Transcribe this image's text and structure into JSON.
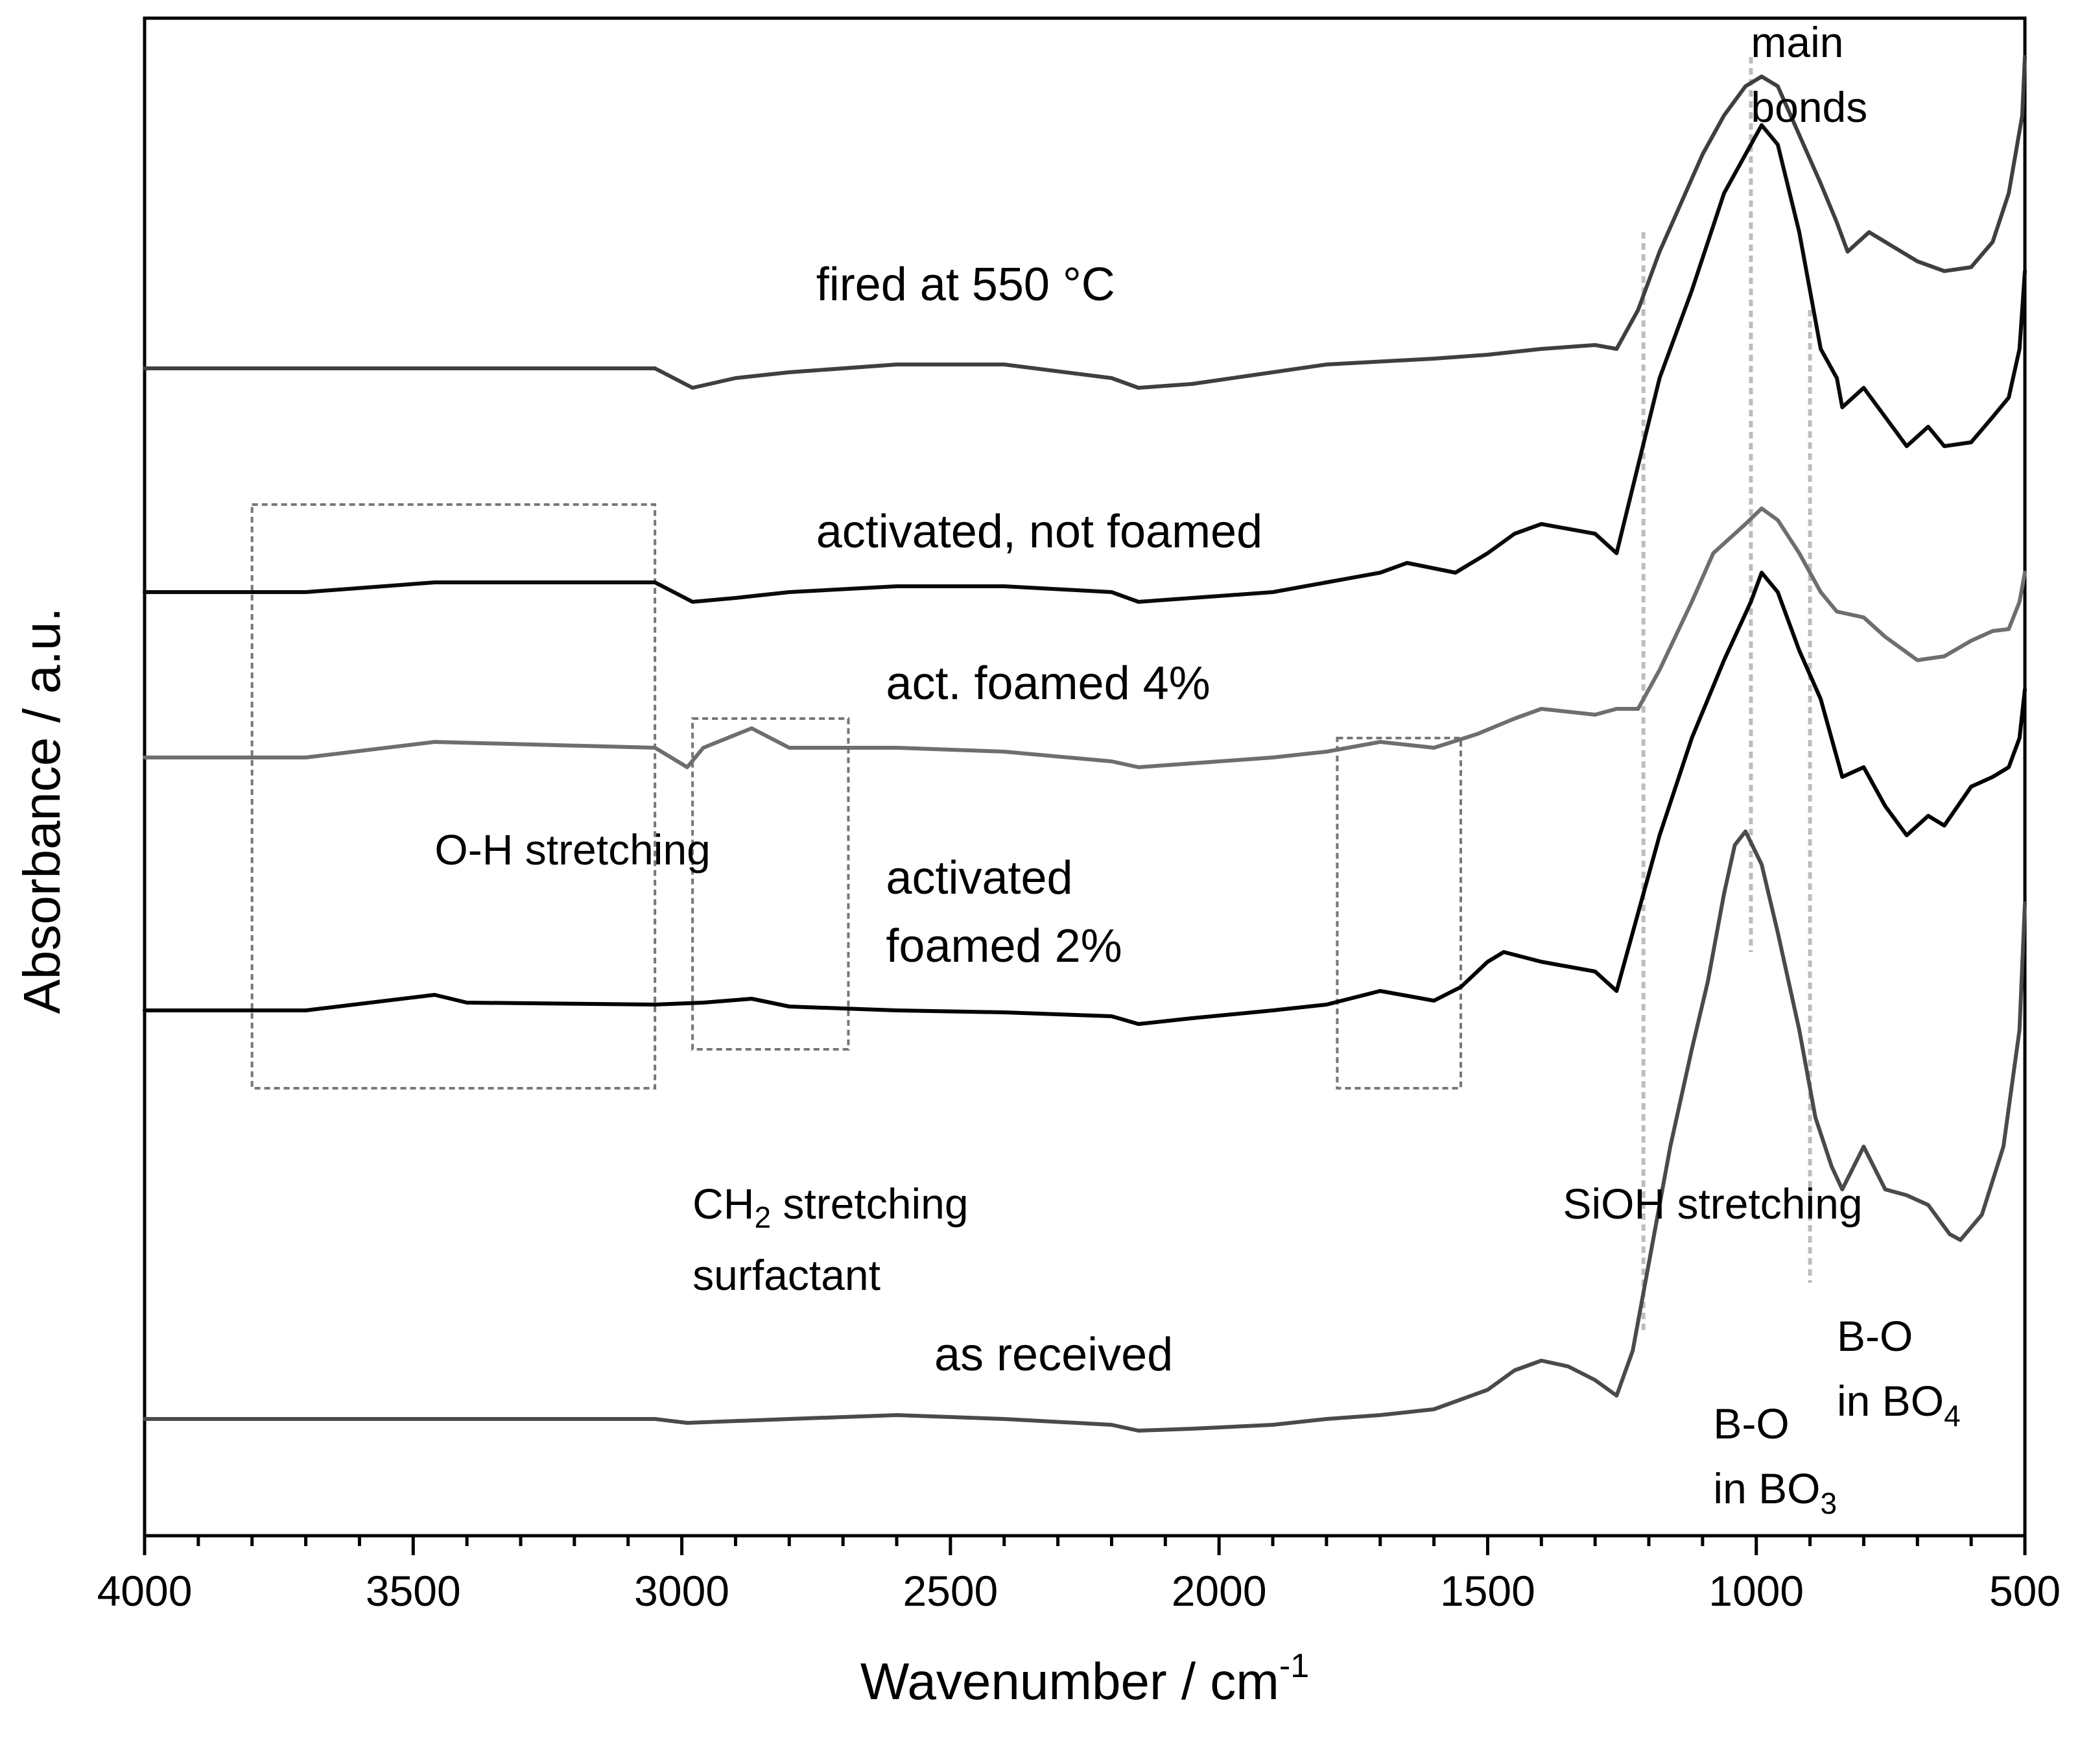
{
  "chart_data": {
    "type": "line",
    "xlabel": "Wavenumber / cm",
    "xlabel_sup": "-1",
    "ylabel": "Absorbance / a.u.",
    "xlim": [
      4000,
      500
    ],
    "x_reversed": true,
    "x_ticks": [
      4000,
      3500,
      3000,
      2500,
      2000,
      1500,
      1000,
      500
    ],
    "x_tick_labels": [
      "4000",
      "3500",
      "3000",
      "2500",
      "2000",
      "1500",
      "1000",
      "500"
    ],
    "y_unit": "a.u. (stacked, offset)",
    "ylim": [
      0,
      7.8
    ],
    "grid": false,
    "series": [
      {
        "name": "fired at 550 °C",
        "color": "#3f3f3f",
        "points": [
          [
            4000,
            6.0
          ],
          [
            3500,
            6.0
          ],
          [
            3050,
            6.0
          ],
          [
            2980,
            5.9
          ],
          [
            2900,
            5.95
          ],
          [
            2800,
            5.98
          ],
          [
            2600,
            6.02
          ],
          [
            2400,
            6.02
          ],
          [
            2200,
            5.95
          ],
          [
            2150,
            5.9
          ],
          [
            2050,
            5.92
          ],
          [
            1950,
            5.96
          ],
          [
            1800,
            6.02
          ],
          [
            1600,
            6.05
          ],
          [
            1500,
            6.07
          ],
          [
            1400,
            6.1
          ],
          [
            1300,
            6.12
          ],
          [
            1260,
            6.1
          ],
          [
            1220,
            6.3
          ],
          [
            1180,
            6.6
          ],
          [
            1100,
            7.1
          ],
          [
            1060,
            7.3
          ],
          [
            1020,
            7.45
          ],
          [
            990,
            7.5
          ],
          [
            960,
            7.45
          ],
          [
            920,
            7.2
          ],
          [
            880,
            6.95
          ],
          [
            850,
            6.75
          ],
          [
            830,
            6.6
          ],
          [
            790,
            6.7
          ],
          [
            760,
            6.65
          ],
          [
            700,
            6.55
          ],
          [
            650,
            6.5
          ],
          [
            600,
            6.52
          ],
          [
            560,
            6.65
          ],
          [
            530,
            6.9
          ],
          [
            505,
            7.3
          ],
          [
            500,
            7.6
          ]
        ]
      },
      {
        "name": "activated, not foamed",
        "color": "#0a0a0a",
        "points": [
          [
            4000,
            4.85
          ],
          [
            3700,
            4.85
          ],
          [
            3460,
            4.9
          ],
          [
            3050,
            4.9
          ],
          [
            2980,
            4.8
          ],
          [
            2900,
            4.82
          ],
          [
            2800,
            4.85
          ],
          [
            2600,
            4.88
          ],
          [
            2400,
            4.88
          ],
          [
            2200,
            4.85
          ],
          [
            2150,
            4.8
          ],
          [
            2050,
            4.82
          ],
          [
            1900,
            4.85
          ],
          [
            1800,
            4.9
          ],
          [
            1700,
            4.95
          ],
          [
            1650,
            5.0
          ],
          [
            1560,
            4.95
          ],
          [
            1500,
            5.05
          ],
          [
            1450,
            5.15
          ],
          [
            1400,
            5.2
          ],
          [
            1300,
            5.15
          ],
          [
            1260,
            5.05
          ],
          [
            1220,
            5.5
          ],
          [
            1180,
            5.95
          ],
          [
            1120,
            6.4
          ],
          [
            1060,
            6.9
          ],
          [
            1010,
            7.15
          ],
          [
            990,
            7.25
          ],
          [
            960,
            7.15
          ],
          [
            920,
            6.7
          ],
          [
            880,
            6.1
          ],
          [
            850,
            5.95
          ],
          [
            840,
            5.8
          ],
          [
            800,
            5.9
          ],
          [
            760,
            5.75
          ],
          [
            720,
            5.6
          ],
          [
            680,
            5.7
          ],
          [
            650,
            5.6
          ],
          [
            600,
            5.62
          ],
          [
            560,
            5.75
          ],
          [
            530,
            5.85
          ],
          [
            510,
            6.1
          ],
          [
            500,
            6.5
          ]
        ]
      },
      {
        "name": "act. foamed 4%",
        "color": "#6e6e6e",
        "points": [
          [
            4000,
            4.0
          ],
          [
            3700,
            4.0
          ],
          [
            3460,
            4.08
          ],
          [
            3050,
            4.05
          ],
          [
            2990,
            3.95
          ],
          [
            2960,
            4.05
          ],
          [
            2870,
            4.15
          ],
          [
            2800,
            4.05
          ],
          [
            2600,
            4.05
          ],
          [
            2400,
            4.03
          ],
          [
            2200,
            3.98
          ],
          [
            2150,
            3.95
          ],
          [
            2050,
            3.97
          ],
          [
            1900,
            4.0
          ],
          [
            1800,
            4.03
          ],
          [
            1700,
            4.08
          ],
          [
            1600,
            4.05
          ],
          [
            1520,
            4.12
          ],
          [
            1450,
            4.2
          ],
          [
            1400,
            4.25
          ],
          [
            1300,
            4.22
          ],
          [
            1260,
            4.25
          ],
          [
            1220,
            4.25
          ],
          [
            1180,
            4.45
          ],
          [
            1120,
            4.8
          ],
          [
            1080,
            5.05
          ],
          [
            1060,
            5.1
          ],
          [
            1020,
            5.2
          ],
          [
            990,
            5.28
          ],
          [
            960,
            5.22
          ],
          [
            920,
            5.05
          ],
          [
            880,
            4.85
          ],
          [
            850,
            4.75
          ],
          [
            800,
            4.72
          ],
          [
            760,
            4.62
          ],
          [
            700,
            4.5
          ],
          [
            650,
            4.52
          ],
          [
            600,
            4.6
          ],
          [
            560,
            4.65
          ],
          [
            530,
            4.66
          ],
          [
            510,
            4.8
          ],
          [
            500,
            4.95
          ]
        ]
      },
      {
        "name": "activated foamed 2%",
        "color": "#000000",
        "points": [
          [
            4000,
            2.7
          ],
          [
            3700,
            2.7
          ],
          [
            3460,
            2.78
          ],
          [
            3400,
            2.74
          ],
          [
            3050,
            2.73
          ],
          [
            2960,
            2.74
          ],
          [
            2870,
            2.76
          ],
          [
            2800,
            2.72
          ],
          [
            2600,
            2.7
          ],
          [
            2400,
            2.69
          ],
          [
            2200,
            2.67
          ],
          [
            2150,
            2.63
          ],
          [
            2050,
            2.66
          ],
          [
            1900,
            2.7
          ],
          [
            1800,
            2.73
          ],
          [
            1700,
            2.8
          ],
          [
            1600,
            2.75
          ],
          [
            1550,
            2.82
          ],
          [
            1500,
            2.95
          ],
          [
            1470,
            3.0
          ],
          [
            1400,
            2.95
          ],
          [
            1300,
            2.9
          ],
          [
            1260,
            2.8
          ],
          [
            1220,
            3.2
          ],
          [
            1180,
            3.6
          ],
          [
            1120,
            4.1
          ],
          [
            1060,
            4.5
          ],
          [
            1010,
            4.8
          ],
          [
            990,
            4.95
          ],
          [
            960,
            4.85
          ],
          [
            920,
            4.55
          ],
          [
            880,
            4.3
          ],
          [
            850,
            4.0
          ],
          [
            840,
            3.9
          ],
          [
            800,
            3.95
          ],
          [
            760,
            3.75
          ],
          [
            720,
            3.6
          ],
          [
            680,
            3.7
          ],
          [
            650,
            3.65
          ],
          [
            600,
            3.85
          ],
          [
            560,
            3.9
          ],
          [
            530,
            3.95
          ],
          [
            510,
            4.1
          ],
          [
            500,
            4.35
          ]
        ]
      },
      {
        "name": "as received",
        "color": "#4a4a4a",
        "points": [
          [
            4000,
            0.6
          ],
          [
            3500,
            0.6
          ],
          [
            3050,
            0.6
          ],
          [
            2990,
            0.58
          ],
          [
            2800,
            0.6
          ],
          [
            2600,
            0.62
          ],
          [
            2400,
            0.6
          ],
          [
            2200,
            0.57
          ],
          [
            2150,
            0.54
          ],
          [
            2050,
            0.55
          ],
          [
            1900,
            0.57
          ],
          [
            1800,
            0.6
          ],
          [
            1700,
            0.62
          ],
          [
            1600,
            0.65
          ],
          [
            1500,
            0.75
          ],
          [
            1450,
            0.85
          ],
          [
            1400,
            0.9
          ],
          [
            1350,
            0.87
          ],
          [
            1300,
            0.8
          ],
          [
            1260,
            0.72
          ],
          [
            1230,
            0.95
          ],
          [
            1200,
            1.4
          ],
          [
            1160,
            2.0
          ],
          [
            1120,
            2.5
          ],
          [
            1090,
            2.85
          ],
          [
            1060,
            3.3
          ],
          [
            1040,
            3.55
          ],
          [
            1020,
            3.62
          ],
          [
            990,
            3.45
          ],
          [
            960,
            3.1
          ],
          [
            920,
            2.6
          ],
          [
            890,
            2.15
          ],
          [
            860,
            1.9
          ],
          [
            840,
            1.78
          ],
          [
            800,
            2.0
          ],
          [
            760,
            1.78
          ],
          [
            720,
            1.75
          ],
          [
            680,
            1.7
          ],
          [
            640,
            1.55
          ],
          [
            620,
            1.52
          ],
          [
            580,
            1.65
          ],
          [
            540,
            2.0
          ],
          [
            510,
            2.6
          ],
          [
            500,
            3.25
          ]
        ]
      }
    ],
    "series_labels": [
      {
        "text": "fired at 550 °C",
        "x": 2750,
        "y": 6.35
      },
      {
        "text": "activated, not foamed",
        "x": 2750,
        "y": 5.08
      },
      {
        "text": "act. foamed 4%",
        "x": 2620,
        "y": 4.3
      },
      {
        "text": "activated",
        "x": 2620,
        "y": 3.3
      },
      {
        "text": "foamed 2%",
        "x": 2620,
        "y": 2.95
      },
      {
        "text": "as received",
        "x": 2530,
        "y": 0.85
      }
    ],
    "annotations": [
      {
        "id": "oh",
        "text": "O-H stretching",
        "x": 3460,
        "y": 3.45
      },
      {
        "id": "ch2",
        "text": "CH",
        "sub": "2",
        "text_after": " stretching",
        "line2": "surfactant",
        "x": 2980,
        "y": 1.63
      },
      {
        "id": "sioh",
        "text": "SiOH stretching",
        "x": 1360,
        "y": 1.63
      },
      {
        "id": "main",
        "text": "main",
        "line2": "bonds",
        "x": 1010,
        "y": 7.6
      },
      {
        "id": "bo3",
        "text": "B-O",
        "line2": "in BO",
        "sub": "3",
        "x": 1080,
        "y": 0.5
      },
      {
        "id": "bo4",
        "text": "B-O",
        "line2": "in BO",
        "sub": "4",
        "x": 850,
        "y": 0.95
      }
    ],
    "region_boxes": [
      {
        "label": "O-H stretching",
        "x_range": [
          3800,
          3050
        ],
        "y_range": [
          2.3,
          5.3
        ]
      },
      {
        "label": "CH2 stretching surfactant",
        "x_range": [
          2980,
          2690
        ],
        "y_range": [
          2.5,
          4.2
        ]
      },
      {
        "label": "SiOH stretching",
        "x_range": [
          1780,
          1550
        ],
        "y_range": [
          2.3,
          4.1
        ]
      }
    ],
    "marker_lines": [
      {
        "label": "B-O in BO3",
        "x": 1210,
        "y_range": [
          1.05,
          6.7
        ]
      },
      {
        "label": "main bonds",
        "x": 1010,
        "y_range": [
          3.0,
          7.6
        ]
      },
      {
        "label": "B-O in BO4",
        "x": 900,
        "y_range": [
          1.3,
          6.3
        ]
      }
    ]
  }
}
